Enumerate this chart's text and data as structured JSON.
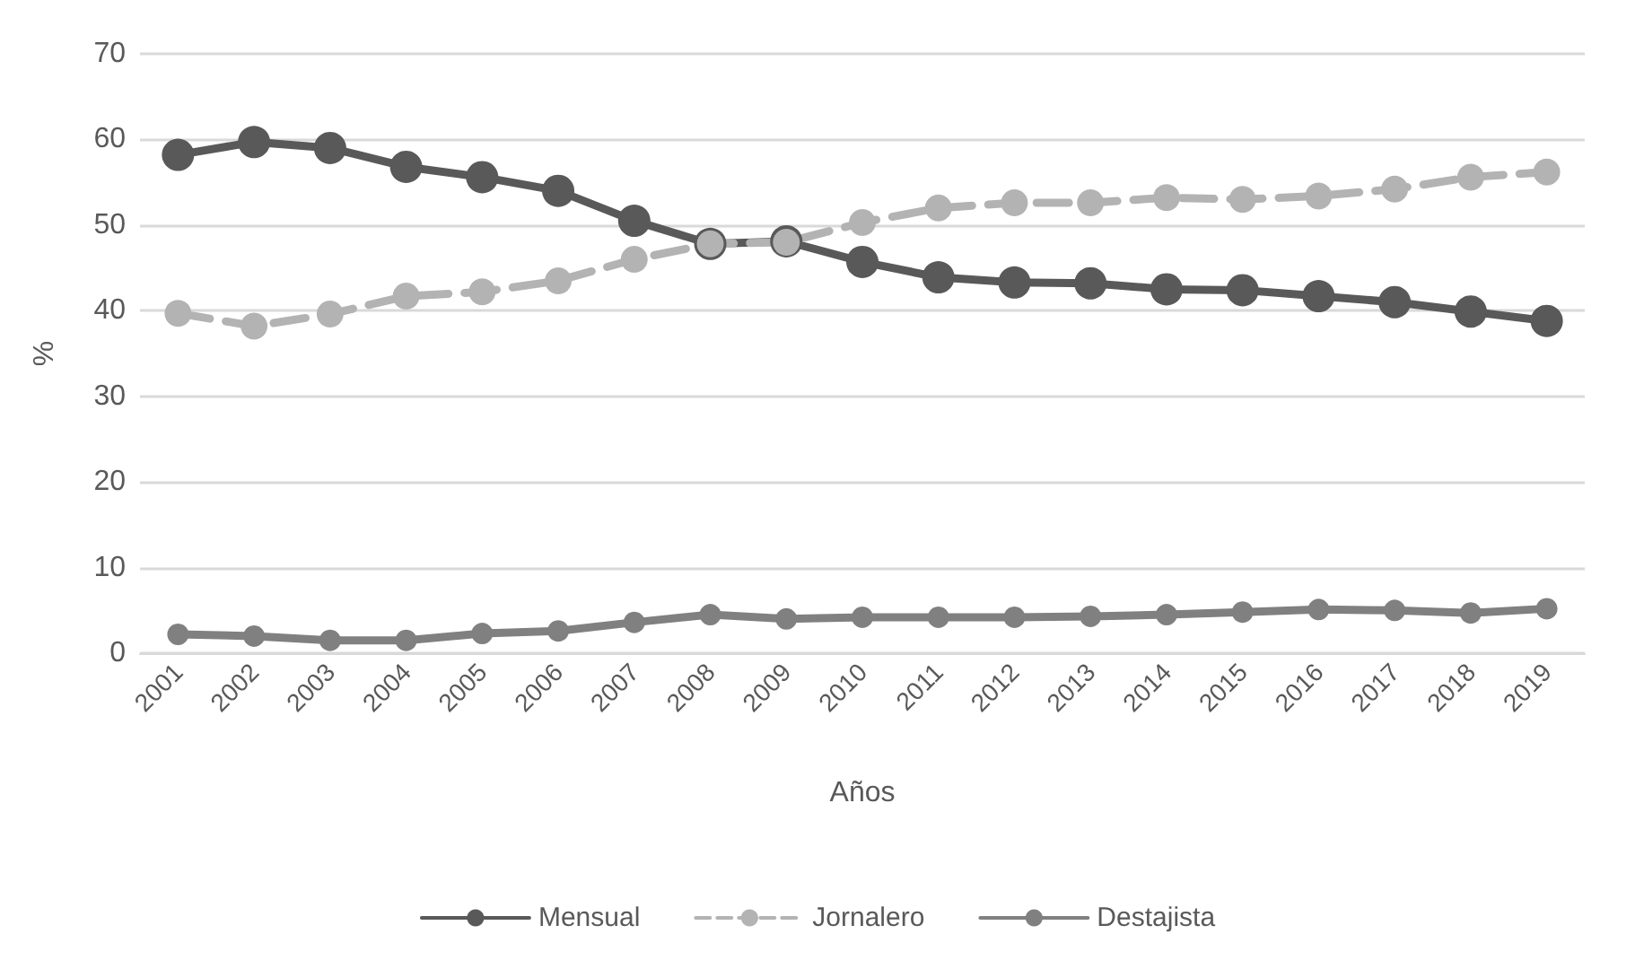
{
  "chart_data": {
    "type": "line",
    "xlabel": "Años",
    "ylabel": "%",
    "categories": [
      "2001",
      "2002",
      "2003",
      "2004",
      "2005",
      "2006",
      "2007",
      "2008",
      "2009",
      "2010",
      "2011",
      "2012",
      "2013",
      "2014",
      "2015",
      "2016",
      "2017",
      "2018",
      "2019"
    ],
    "series": [
      {
        "name": "Mensual",
        "color": "#595959",
        "line_style": "solid",
        "values": [
          58.2,
          59.7,
          59.0,
          56.8,
          55.6,
          54.0,
          50.5,
          47.8,
          48.1,
          45.7,
          43.9,
          43.3,
          43.2,
          42.5,
          42.4,
          41.7,
          41.0,
          39.9,
          38.8
        ]
      },
      {
        "name": "Jornalero",
        "color": "#b3b3b3",
        "line_style": "dashed",
        "values": [
          39.7,
          38.2,
          39.6,
          41.7,
          42.2,
          43.5,
          46.0,
          47.8,
          48.0,
          50.3,
          52.0,
          52.6,
          52.6,
          53.2,
          53.0,
          53.4,
          54.2,
          55.6,
          56.2
        ]
      },
      {
        "name": "Destajista",
        "color": "#808080",
        "line_style": "solid",
        "values": [
          2.2,
          2.0,
          1.5,
          1.5,
          2.3,
          2.6,
          3.6,
          4.5,
          4.0,
          4.2,
          4.2,
          4.2,
          4.3,
          4.5,
          4.8,
          5.1,
          5.0,
          4.7,
          5.2
        ]
      }
    ],
    "ylim": [
      0,
      70
    ],
    "yticks": [
      0,
      10,
      20,
      30,
      40,
      50,
      60,
      70
    ],
    "grid": "y",
    "legend": "bottom",
    "marker": "circle"
  }
}
